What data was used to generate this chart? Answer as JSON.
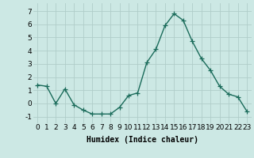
{
  "x": [
    0,
    1,
    2,
    3,
    4,
    5,
    6,
    7,
    8,
    9,
    10,
    11,
    12,
    13,
    14,
    15,
    16,
    17,
    18,
    19,
    20,
    21,
    22,
    23
  ],
  "y": [
    1.4,
    1.3,
    0.0,
    1.1,
    -0.1,
    -0.5,
    -0.8,
    -0.8,
    -0.8,
    -0.3,
    0.6,
    0.8,
    3.1,
    4.1,
    5.9,
    6.8,
    6.3,
    4.7,
    3.4,
    2.5,
    1.3,
    0.7,
    0.5,
    -0.6
  ],
  "line_color": "#1a6b5a",
  "marker": "+",
  "marker_size": 4,
  "linewidth": 1.0,
  "xlabel": "Humidex (Indice chaleur)",
  "xlabel_fontsize": 7,
  "ylabel_ticks": [
    -1,
    0,
    1,
    2,
    3,
    4,
    5,
    6,
    7
  ],
  "xlim": [
    -0.5,
    23.5
  ],
  "ylim": [
    -1.5,
    7.6
  ],
  "bg_color": "#cce8e4",
  "grid_color": "#b0cdc9",
  "tick_fontsize": 6.5
}
